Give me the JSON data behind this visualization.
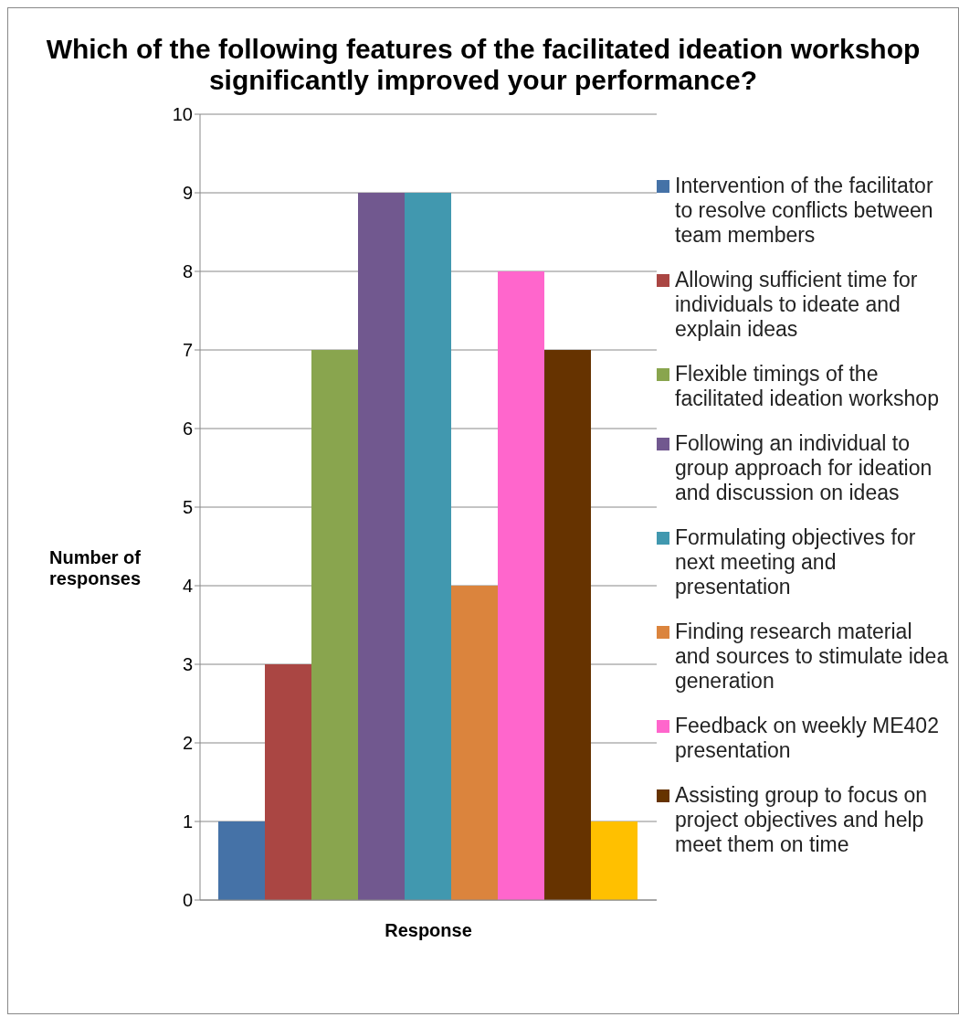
{
  "chart_data": {
    "type": "bar",
    "title": "Which of the following features of the facilitated ideation workshop significantly improved your performance?",
    "xlabel": "Response",
    "ylabel": "Number of responses",
    "categories": [
      null
    ],
    "ylim": [
      0,
      10
    ],
    "yticks": [
      0,
      1,
      2,
      3,
      4,
      5,
      6,
      7,
      8,
      9,
      10
    ],
    "grid": "y",
    "legend": "right",
    "tick_labels": "y",
    "series": [
      {
        "name": "Intervention of the facilitator to resolve conflicts between team members",
        "color": "#4572a7",
        "values": [
          1
        ]
      },
      {
        "name": "Allowing sufficient time for individuals to ideate and explain ideas",
        "color": "#aa4643",
        "values": [
          3
        ]
      },
      {
        "name": "Flexible timings of the facilitated ideation workshop",
        "color": "#89a54e",
        "values": [
          7
        ]
      },
      {
        "name": "Following an individual to group approach for ideation and discussion on ideas",
        "color": "#71588f",
        "values": [
          9
        ]
      },
      {
        "name": "Formulating objectives for next meeting and presentation",
        "color": "#4198af",
        "values": [
          9
        ]
      },
      {
        "name": "Finding research material and sources to stimulate idea generation",
        "color": "#db843d",
        "values": [
          4
        ]
      },
      {
        "name": "Feedback on weekly ME402 presentation",
        "color": "#ff66cc",
        "values": [
          8
        ]
      },
      {
        "name": "Assisting group to focus on project objectives and help meet them on time",
        "color": "#663300",
        "values": [
          7
        ]
      },
      {
        "color": "#ffc000",
        "values": [
          1
        ]
      }
    ]
  }
}
